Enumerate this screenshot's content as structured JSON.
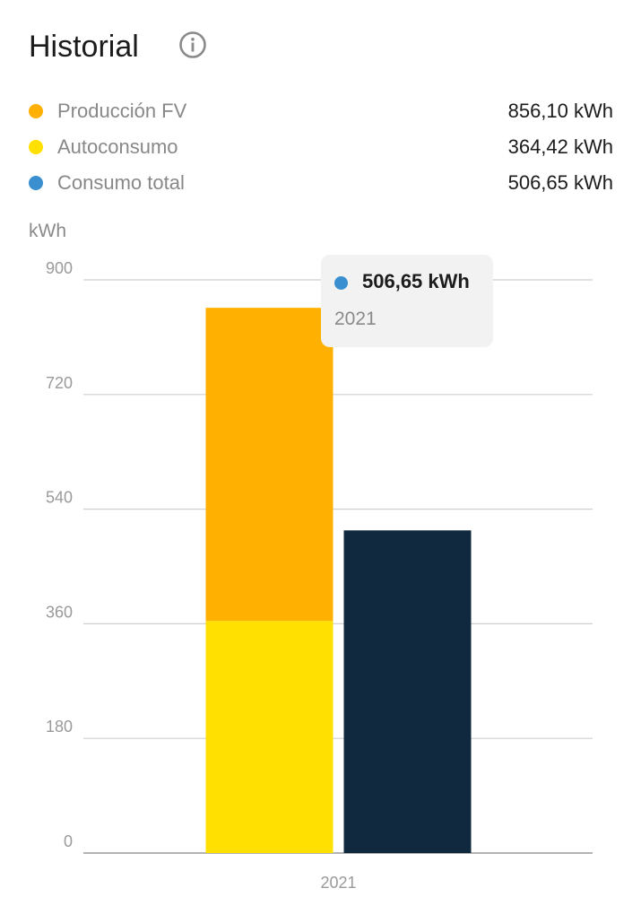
{
  "header": {
    "title": "Historial",
    "info_icon": "info-icon"
  },
  "legend": [
    {
      "label": "Producción FV",
      "value": "856,10 kWh",
      "color": "#FFB000"
    },
    {
      "label": "Autoconsumo",
      "value": "364,42 kWh",
      "color": "#FFE000"
    },
    {
      "label": "Consumo total",
      "value": "506,65 kWh",
      "color": "#3A8FD0"
    }
  ],
  "tooltip": {
    "value": "506,65 kWh",
    "year": "2021",
    "dot_color": "#3A8FD0"
  },
  "chart_data": {
    "type": "bar",
    "ylabel": "kWh",
    "ylim": [
      0,
      900
    ],
    "yticks": [
      0,
      180,
      360,
      540,
      720,
      900
    ],
    "categories": [
      "2021"
    ],
    "grid": true,
    "series": [
      {
        "name": "Autoconsumo",
        "values": [
          364.42
        ],
        "color": "#FFE000",
        "stack": "prod"
      },
      {
        "name": "Producción FV",
        "values": [
          856.1
        ],
        "color": "#FFB000",
        "stack": "prod"
      },
      {
        "name": "Consumo total",
        "values": [
          506.65
        ],
        "color": "#11293F",
        "stack": "cons"
      }
    ]
  }
}
